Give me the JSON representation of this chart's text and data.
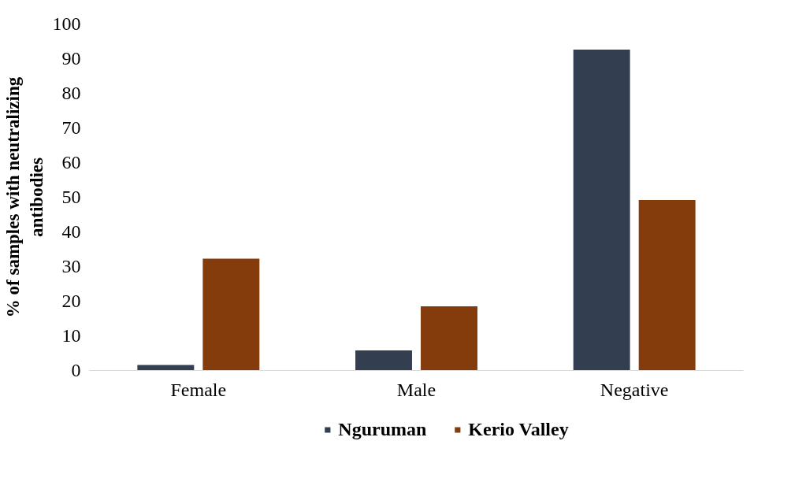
{
  "chart_data": {
    "type": "bar",
    "ylabel": "% of samples with neutralizing antibodies",
    "categories": [
      "Female",
      "Male",
      "Negative"
    ],
    "series": [
      {
        "name": "Nguruman",
        "color": "#333f50",
        "values": [
          1.6,
          5.8,
          92.6
        ]
      },
      {
        "name": "Kerio Valley",
        "color": "#843c0c",
        "values": [
          32.3,
          18.5,
          49.2
        ]
      }
    ],
    "ylim": [
      0,
      100
    ],
    "yticks": [
      0,
      10,
      20,
      30,
      40,
      50,
      60,
      70,
      80,
      90,
      100
    ],
    "grid": false,
    "legend": "bottom"
  }
}
